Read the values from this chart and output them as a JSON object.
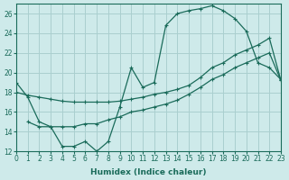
{
  "xlabel": "Humidex (Indice chaleur)",
  "bg_color": "#ceeaea",
  "grid_color": "#aacfcf",
  "line_color": "#1a6b5a",
  "xlim": [
    0,
    23
  ],
  "ylim": [
    12,
    27
  ],
  "xticks": [
    0,
    1,
    2,
    3,
    4,
    5,
    6,
    7,
    8,
    9,
    10,
    11,
    12,
    13,
    14,
    15,
    16,
    17,
    18,
    19,
    20,
    21,
    22,
    23
  ],
  "yticks": [
    12,
    14,
    16,
    18,
    20,
    22,
    24,
    26
  ],
  "curve_peak_x": [
    0,
    1,
    2,
    3,
    4,
    5,
    6,
    7,
    8,
    9,
    10,
    11,
    12,
    13,
    14,
    15,
    16,
    17,
    18,
    19,
    20,
    21,
    22,
    23
  ],
  "curve_peak_y": [
    19.0,
    17.5,
    15.0,
    14.5,
    12.5,
    12.5,
    13.0,
    12.0,
    13.0,
    16.5,
    20.5,
    18.5,
    19.0,
    24.8,
    26.0,
    26.3,
    26.5,
    26.8,
    26.3,
    25.5,
    24.2,
    21.0,
    20.5,
    19.3
  ],
  "curve_diag_x": [
    0,
    1,
    2,
    3,
    4,
    5,
    6,
    7,
    8,
    9,
    10,
    11,
    12,
    13,
    14,
    15,
    16,
    17,
    18,
    19,
    20,
    21,
    22,
    23
  ],
  "curve_diag_y": [
    18.0,
    17.7,
    17.5,
    17.3,
    17.1,
    17.0,
    17.0,
    17.0,
    17.0,
    17.1,
    17.3,
    17.5,
    17.8,
    18.0,
    18.3,
    18.7,
    19.5,
    20.5,
    21.0,
    21.8,
    22.3,
    22.8,
    23.5,
    19.2
  ],
  "curve_low_x": [
    1,
    2,
    3,
    4,
    5,
    6,
    7,
    8,
    9,
    10,
    11,
    12,
    13,
    14,
    15,
    16,
    17,
    18,
    19,
    20,
    21,
    22,
    23
  ],
  "curve_low_y": [
    15.0,
    14.5,
    14.5,
    14.5,
    14.5,
    14.8,
    14.8,
    15.2,
    15.5,
    16.0,
    16.2,
    16.5,
    16.8,
    17.2,
    17.8,
    18.5,
    19.3,
    19.8,
    20.5,
    21.0,
    21.5,
    22.0,
    19.2
  ]
}
